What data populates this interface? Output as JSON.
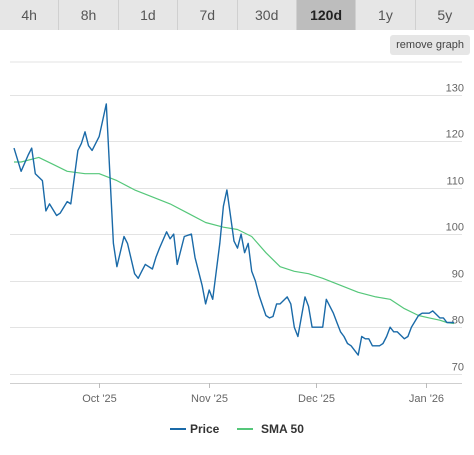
{
  "range_tabs": [
    {
      "label": "4h",
      "active": false
    },
    {
      "label": "8h",
      "active": false
    },
    {
      "label": "1d",
      "active": false
    },
    {
      "label": "7d",
      "active": false
    },
    {
      "label": "30d",
      "active": false
    },
    {
      "label": "120d",
      "active": true
    },
    {
      "label": "1y",
      "active": false
    },
    {
      "label": "5y",
      "active": false
    }
  ],
  "remove_graph_label": "remove graph",
  "chart_data": {
    "type": "line",
    "xlabel": "",
    "ylabel": "",
    "x_ticks": [
      "Oct '25",
      "Nov '25",
      "Dec '25",
      "Jan '26"
    ],
    "y_ticks": [
      70,
      80,
      90,
      100,
      110,
      120,
      130
    ],
    "ylim": [
      68,
      137
    ],
    "xlim": [
      "2025-09-07",
      "2026-01-09"
    ],
    "grid": true,
    "legend_position": "bottom-center",
    "series": [
      {
        "name": "Price",
        "color": "#1a6aa8",
        "x": [
          "2025-09-07",
          "2025-09-09",
          "2025-09-11",
          "2025-09-12",
          "2025-09-13",
          "2025-09-15",
          "2025-09-16",
          "2025-09-17",
          "2025-09-19",
          "2025-09-20",
          "2025-09-22",
          "2025-09-23",
          "2025-09-25",
          "2025-09-26",
          "2025-09-27",
          "2025-09-28",
          "2025-09-29",
          "2025-10-01",
          "2025-10-03",
          "2025-10-05",
          "2025-10-06",
          "2025-10-08",
          "2025-10-09",
          "2025-10-11",
          "2025-10-12",
          "2025-10-13",
          "2025-10-14",
          "2025-10-16",
          "2025-10-17",
          "2025-10-18",
          "2025-10-20",
          "2025-10-21",
          "2025-10-22",
          "2025-10-23",
          "2025-10-25",
          "2025-10-27",
          "2025-10-28",
          "2025-10-30",
          "2025-10-31",
          "2025-11-01",
          "2025-11-02",
          "2025-11-04",
          "2025-11-05",
          "2025-11-06",
          "2025-11-08",
          "2025-11-09",
          "2025-11-10",
          "2025-11-11",
          "2025-11-12",
          "2025-11-13",
          "2025-11-14",
          "2025-11-15",
          "2025-11-17",
          "2025-11-18",
          "2025-11-19",
          "2025-11-20",
          "2025-11-21",
          "2025-11-23",
          "2025-11-24",
          "2025-11-25",
          "2025-11-26",
          "2025-11-28",
          "2025-11-29",
          "2025-11-30",
          "2025-12-01",
          "2025-12-03",
          "2025-12-04",
          "2025-12-06",
          "2025-12-07",
          "2025-12-08",
          "2025-12-09",
          "2025-12-10",
          "2025-12-11",
          "2025-12-13",
          "2025-12-14",
          "2025-12-15",
          "2025-12-16",
          "2025-12-17",
          "2025-12-19",
          "2025-12-20",
          "2025-12-21",
          "2025-12-22",
          "2025-12-23",
          "2025-12-24",
          "2025-12-26",
          "2025-12-27",
          "2025-12-28",
          "2025-12-30",
          "2025-12-31",
          "2026-01-01",
          "2026-01-02",
          "2026-01-03",
          "2026-01-05",
          "2026-01-06",
          "2026-01-07",
          "2026-01-08",
          "2026-01-09"
        ],
        "values": [
          118.5,
          113.5,
          117,
          118.5,
          113,
          111.5,
          105,
          106.5,
          104,
          104.5,
          107,
          106.5,
          118,
          119.5,
          122,
          119,
          118,
          121,
          128,
          98,
          93,
          99.5,
          98,
          91.5,
          90.5,
          92,
          93.5,
          92.5,
          95,
          97,
          100.5,
          99,
          100,
          93.5,
          99.5,
          100,
          95,
          89,
          85,
          88,
          86,
          98,
          106,
          109.5,
          98.5,
          97,
          100,
          96,
          98,
          92,
          90,
          87,
          82.5,
          82,
          82.3,
          85,
          85,
          86.5,
          85,
          80,
          78,
          86.5,
          84.5,
          80,
          80,
          80,
          86,
          83,
          81,
          79,
          78,
          76.5,
          76,
          74,
          78,
          77.5,
          77.5,
          76,
          76,
          76.5,
          78,
          80,
          79,
          79,
          77.5,
          78,
          80,
          82.5,
          83,
          83,
          83,
          83.5,
          82,
          82,
          81,
          81,
          81
        ]
      },
      {
        "name": "SMA 50",
        "color": "#55c77a",
        "x": [
          "2025-09-07",
          "2025-09-09",
          "2025-09-14",
          "2025-09-18",
          "2025-09-22",
          "2025-09-27",
          "2025-10-01",
          "2025-10-06",
          "2025-10-11",
          "2025-10-16",
          "2025-10-21",
          "2025-10-26",
          "2025-10-31",
          "2025-11-05",
          "2025-11-09",
          "2025-11-13",
          "2025-11-17",
          "2025-11-21",
          "2025-11-25",
          "2025-11-29",
          "2025-12-03",
          "2025-12-08",
          "2025-12-13",
          "2025-12-18",
          "2025-12-22",
          "2025-12-26",
          "2025-12-30",
          "2026-01-02",
          "2026-01-05",
          "2026-01-07",
          "2026-01-09"
        ],
        "values": [
          115.5,
          115.5,
          116.5,
          115,
          113.5,
          113,
          113,
          111.5,
          109.5,
          108,
          106.5,
          104.5,
          102.5,
          101.5,
          101,
          99.5,
          96,
          93,
          92,
          91.5,
          90.5,
          89,
          87.5,
          86.5,
          86,
          84,
          82.5,
          82,
          81.5,
          81,
          80.8
        ]
      }
    ]
  }
}
